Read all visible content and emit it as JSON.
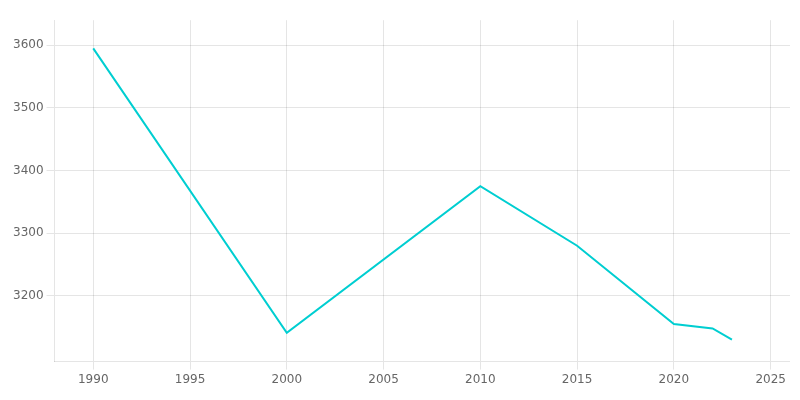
{
  "chart_data": {
    "type": "line",
    "x": [
      1990,
      2000,
      2010,
      2015,
      2020,
      2022,
      2023
    ],
    "values": [
      3595,
      3141,
      3375,
      3280,
      3155,
      3148,
      3130
    ],
    "color": "#00CED1",
    "xlim": [
      1988,
      2026
    ],
    "ylim": [
      3095,
      3640
    ],
    "xticks": [
      1990,
      1995,
      2000,
      2005,
      2010,
      2015,
      2020,
      2025
    ],
    "yticks": [
      3200,
      3300,
      3400,
      3500,
      3600
    ],
    "grid": true
  }
}
